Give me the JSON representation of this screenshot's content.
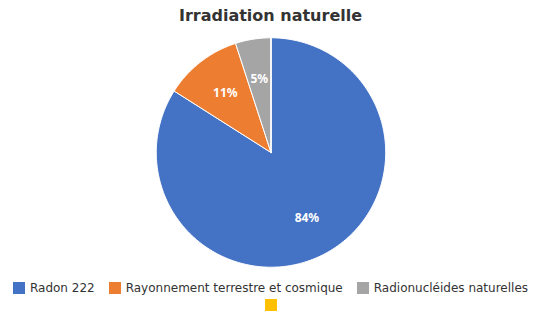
{
  "chart_data": {
    "type": "pie",
    "title": "Irradiation naturelle",
    "categories": [
      "Radon 222",
      "Rayonnement terrestre et cosmique",
      "Radionucléides naturelles",
      null
    ],
    "values": [
      84,
      11,
      5,
      0.001
    ],
    "value_labels": [
      "84%",
      "11%",
      "5%",
      null
    ],
    "colors": [
      "#4472C4",
      "#ED7D31",
      "#A5A5A5",
      "#FFC000"
    ],
    "data_labels": true
  }
}
